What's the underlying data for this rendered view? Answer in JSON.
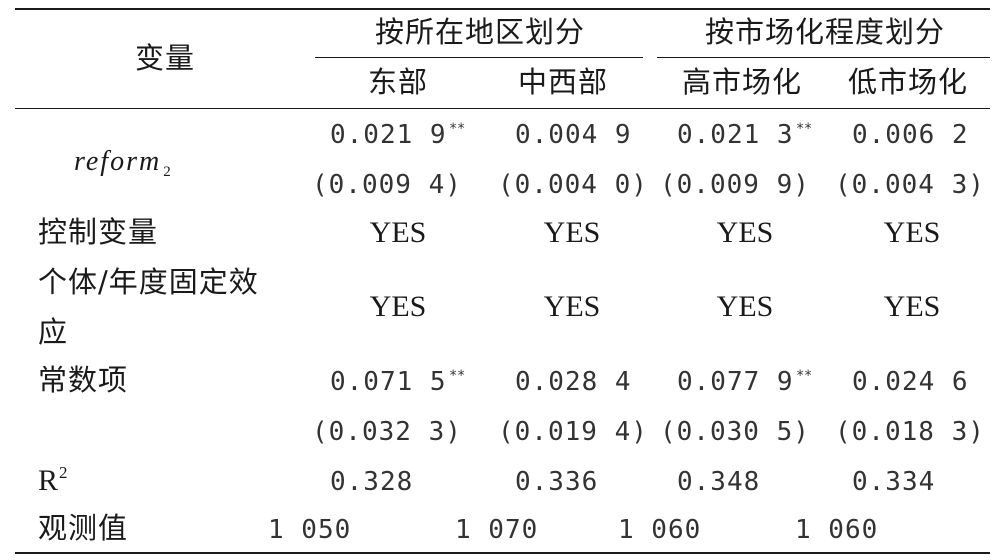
{
  "table": {
    "header": {
      "variable": "变量",
      "group_region": "按所在地区划分",
      "group_market": "按市场化程度划分",
      "col_east": "东部",
      "col_midwest": "中西部",
      "col_high_market": "高市场化",
      "col_low_market": "低市场化"
    },
    "rows": {
      "reform": {
        "label_main": "reform",
        "label_sub": "2",
        "coef": [
          "0.021 9",
          "0.004 9",
          "0.021 3",
          "0.006 2"
        ],
        "stars": [
          "**",
          "",
          "**",
          ""
        ],
        "se": [
          "(0.009 4)",
          "(0.004 0)",
          "(0.009 9)",
          "(0.004 3)"
        ]
      },
      "controls": {
        "label": "控制变量",
        "values": [
          "YES",
          "YES",
          "YES",
          "YES"
        ]
      },
      "fixed_effects": {
        "label_line1": "个体/年度固定效",
        "label_line2": "应",
        "values": [
          "YES",
          "YES",
          "YES",
          "YES"
        ]
      },
      "constant": {
        "label": "常数项",
        "coef": [
          "0.071 5",
          "0.028 4",
          "0.077 9",
          "0.024 6"
        ],
        "stars": [
          "**",
          "",
          "**",
          ""
        ],
        "se": [
          "(0.032 3)",
          "(0.019 4)",
          "(0.030 5)",
          "(0.018 3)"
        ]
      },
      "r2": {
        "label_main": "R",
        "label_sup": "2",
        "values": [
          "0.328",
          "0.336",
          "0.348",
          "0.334"
        ]
      },
      "observations": {
        "label": "观测值",
        "values": [
          "1 050",
          "1 070",
          "1 060",
          "1 060"
        ]
      }
    }
  }
}
